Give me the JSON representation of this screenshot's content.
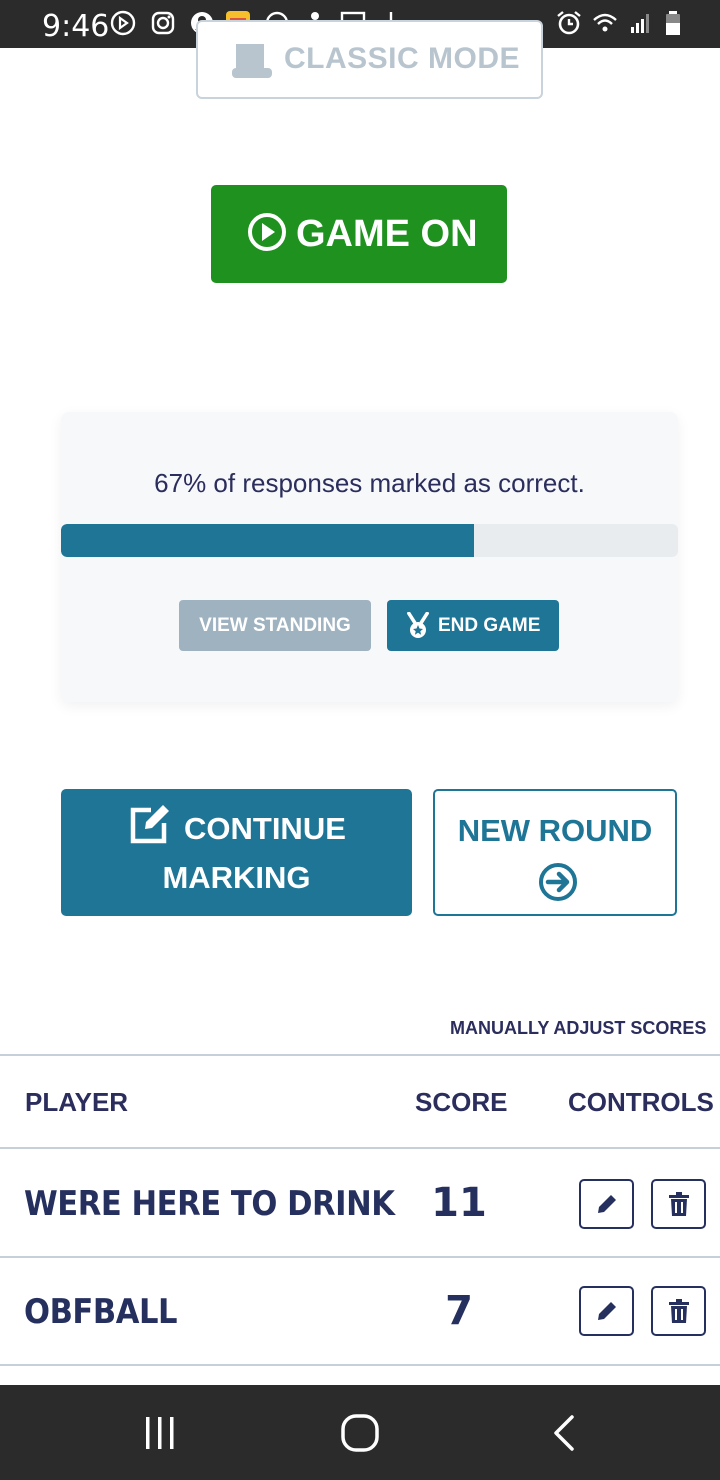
{
  "status_bar": {
    "time": "9:46",
    "icons": [
      "play-circle-icon",
      "instagram-icon",
      "account-icon",
      "app-icon",
      "do-not-disturb-icon",
      "chess-pawn-icon",
      "image-icon",
      "download-icon",
      "alarm-icon",
      "wifi-icon",
      "signal-icon",
      "battery-icon"
    ]
  },
  "mode": {
    "classic_label": "CLASSIC MODE",
    "game_on_label": "GAME ON"
  },
  "progress": {
    "text": "67% of responses marked as correct.",
    "percent": 67,
    "view_standing_label": "VIEW STANDING",
    "end_game_label": "END GAME"
  },
  "actions": {
    "continue_line1": "CONTINUE",
    "continue_line2": "MARKING",
    "new_round_label": "NEW ROUND"
  },
  "scores": {
    "manual_adjust_label": "MANUALLY ADJUST SCORES",
    "headers": {
      "player": "PLAYER",
      "score": "SCORE",
      "controls": "CONTROLS"
    },
    "rows": [
      {
        "player": "WERE HERE TO DRINK",
        "score": "11"
      },
      {
        "player": "OBFBALL",
        "score": "7"
      }
    ]
  },
  "colors": {
    "primary": "#1e7596",
    "success": "#1f911f",
    "muted": "#9fb2c0",
    "text_dark": "#2b2d5c"
  }
}
